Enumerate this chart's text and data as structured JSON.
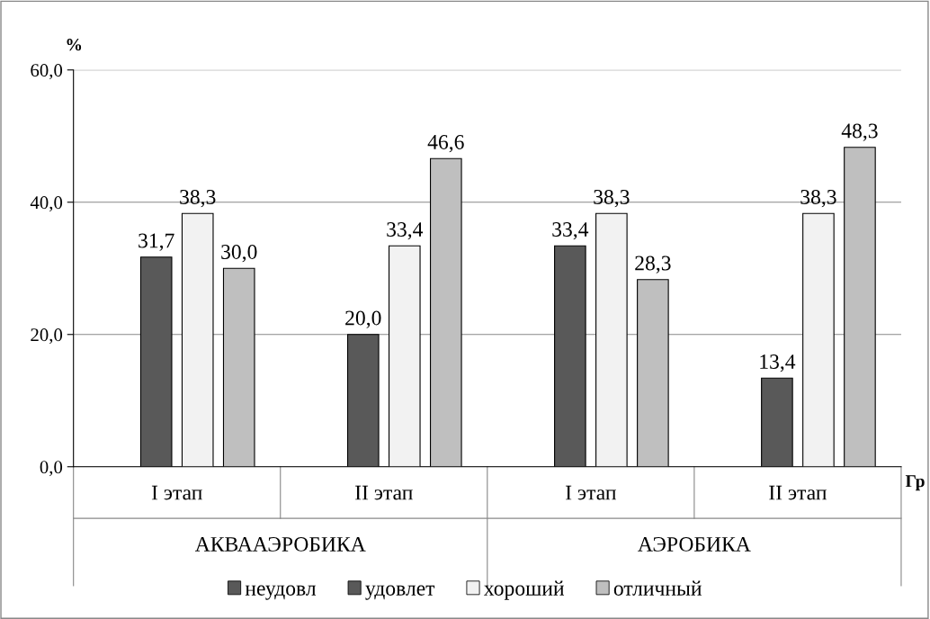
{
  "chart_data": {
    "type": "bar",
    "categories": [
      "I этап",
      "II этап",
      "I этап",
      "II этап"
    ],
    "series": [
      {
        "name": "неудовл",
        "color": "#595959",
        "values": [
          null,
          null,
          null,
          null
        ],
        "value_labels": [
          null,
          null,
          null,
          null
        ]
      },
      {
        "name": "удовлет",
        "color": "#595959",
        "values": [
          31.7,
          20.0,
          33.4,
          13.4
        ],
        "value_labels": [
          "31,7",
          "20,0",
          "33,4",
          "13,4"
        ]
      },
      {
        "name": "хороший",
        "color": "#f2f2f2",
        "values": [
          38.3,
          33.4,
          38.3,
          38.3
        ],
        "value_labels": [
          "38,3",
          "33,4",
          "38,3",
          "38,3"
        ]
      },
      {
        "name": "отличный",
        "color": "#bfbfbf",
        "values": [
          30.0,
          46.6,
          28.3,
          48.3
        ],
        "value_labels": [
          "30,0",
          "46,6",
          "28,3",
          "48,3"
        ]
      }
    ],
    "ylabel": "%",
    "xlabel": "Гр",
    "annotations": [
      "АКВААЭРОБИКА",
      "АЭРОБИКА"
    ],
    "ylim": [
      0,
      60
    ],
    "yticks": [
      {
        "value": 0,
        "label": "0,0"
      },
      {
        "value": 20,
        "label": "20,0"
      },
      {
        "value": 40,
        "label": "40,0"
      },
      {
        "value": 60,
        "label": "60,0"
      }
    ],
    "grid": "y",
    "legend": "bottom"
  }
}
